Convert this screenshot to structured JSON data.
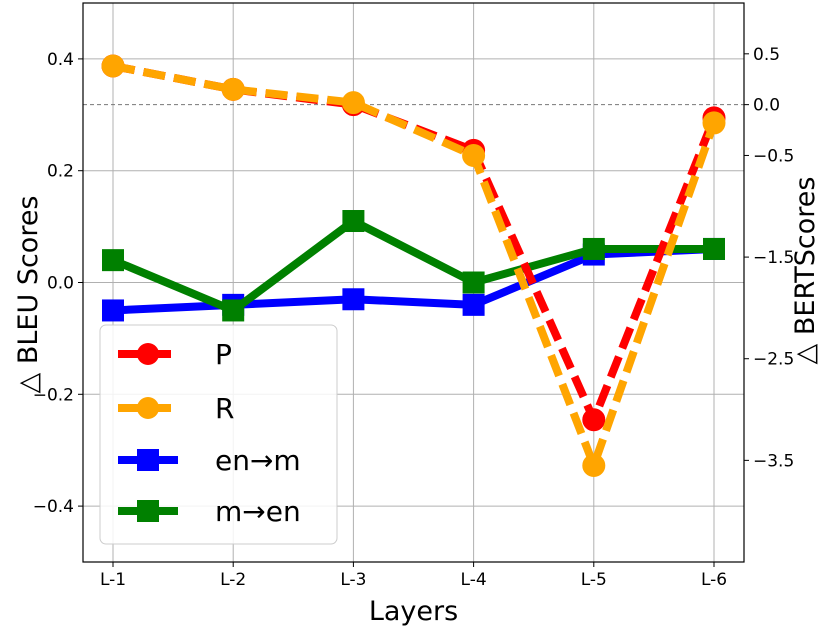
{
  "chart_data": {
    "type": "line",
    "categories": [
      "L-1",
      "L-2",
      "L-3",
      "L-4",
      "L-5",
      "L-6"
    ],
    "xlabel": "Layers",
    "ylabel_left": "△ BLEU Scores",
    "ylabel_right": "△ BERTScores",
    "ylim_left": [
      -0.5,
      0.5
    ],
    "yticks_left": [
      0.4,
      0.2,
      0.0,
      -0.2,
      -0.4
    ],
    "ytick_labels_left": [
      "0.4",
      "0.2",
      "0.0",
      "−0.2",
      "−0.4"
    ],
    "ylim_right": [
      -4.5,
      1.0
    ],
    "yticks_right": [
      0.5,
      0.0,
      -0.5,
      -1.5,
      -2.5,
      -3.5
    ],
    "ytick_labels_right": [
      "0.5",
      "0.0",
      "−0.5",
      "−1.5",
      "−2.5",
      "−3.5"
    ],
    "grid": true,
    "reference_line_right": 0.0,
    "legend_position": "lower-left",
    "series": [
      {
        "name": "P",
        "axis": "right",
        "marker": "circle",
        "style": "dashed",
        "color": "#ff0000",
        "values": [
          0.38,
          0.15,
          0.0,
          -0.45,
          -3.1,
          -0.13
        ]
      },
      {
        "name": "R",
        "axis": "right",
        "marker": "circle",
        "style": "dashed",
        "color": "#ffa500",
        "values": [
          0.38,
          0.15,
          0.02,
          -0.5,
          -3.55,
          -0.18
        ]
      },
      {
        "name": "en→m",
        "axis": "left",
        "marker": "square",
        "style": "solid",
        "color": "#0000ff",
        "values": [
          -0.05,
          -0.04,
          -0.03,
          -0.04,
          0.05,
          0.06
        ]
      },
      {
        "name": "m→en",
        "axis": "left",
        "marker": "square",
        "style": "solid",
        "color": "#008000",
        "values": [
          0.04,
          -0.05,
          0.11,
          0.0,
          0.06,
          0.06
        ]
      }
    ]
  }
}
